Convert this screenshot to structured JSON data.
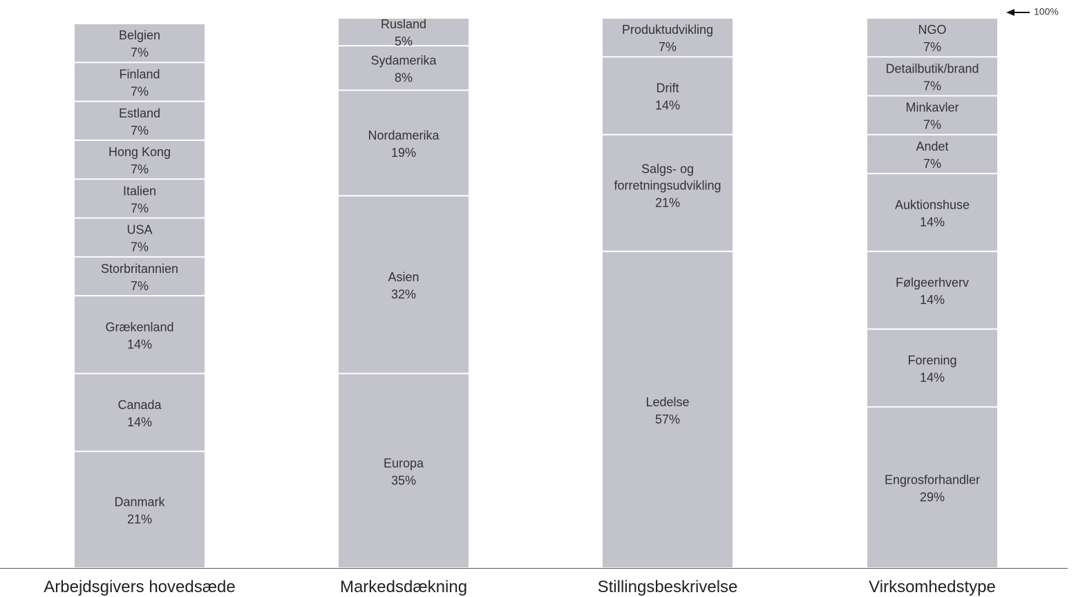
{
  "chart_data": {
    "type": "stacked_columns",
    "ylim": [
      0,
      100
    ],
    "annotation": "100%",
    "color": "#c3c3cb",
    "columns": [
      {
        "name": "Arbejdsgivers hovedsæde",
        "segments": [
          {
            "name": "Danmark",
            "value": 21,
            "value_label": "21%"
          },
          {
            "name": "Canada",
            "value": 14,
            "value_label": "14%"
          },
          {
            "name": "Grækenland",
            "value": 14,
            "value_label": "14%"
          },
          {
            "name": "Storbritannien",
            "value": 7,
            "value_label": "7%"
          },
          {
            "name": "USA",
            "value": 7,
            "value_label": "7%"
          },
          {
            "name": "Italien",
            "value": 7,
            "value_label": "7%"
          },
          {
            "name": "Hong Kong",
            "value": 7,
            "value_label": "7%"
          },
          {
            "name": "Estland",
            "value": 7,
            "value_label": "7%"
          },
          {
            "name": "Finland",
            "value": 7,
            "value_label": "7%"
          },
          {
            "name": "Belgien",
            "value": 7,
            "value_label": "7%"
          }
        ]
      },
      {
        "name": "Markedsdækning",
        "segments": [
          {
            "name": "Europa",
            "value": 35,
            "value_label": "35%"
          },
          {
            "name": "Asien",
            "value": 32,
            "value_label": "32%"
          },
          {
            "name": "Nordamerika",
            "value": 19,
            "value_label": "19%"
          },
          {
            "name": "Sydamerika",
            "value": 8,
            "value_label": "8%"
          },
          {
            "name": "Rusland",
            "value": 5,
            "value_label": "5%"
          }
        ]
      },
      {
        "name": "Stillingsbeskrivelse",
        "segments": [
          {
            "name": "Ledelse",
            "value": 57,
            "value_label": "57%"
          },
          {
            "name": "Salgs- og forretningsudvikling",
            "value": 21,
            "value_label": "21%"
          },
          {
            "name": "Drift",
            "value": 14,
            "value_label": "14%"
          },
          {
            "name": "Produktudvikling",
            "value": 7,
            "value_label": "7%"
          }
        ]
      },
      {
        "name": "Virksomhedstype",
        "segments": [
          {
            "name": "Engrosforhandler",
            "value": 29,
            "value_label": "29%"
          },
          {
            "name": "Forening",
            "value": 14,
            "value_label": "14%"
          },
          {
            "name": "Følgeerhverv",
            "value": 14,
            "value_label": "14%"
          },
          {
            "name": "Auktionshuse",
            "value": 14,
            "value_label": "14%"
          },
          {
            "name": "Andet",
            "value": 7,
            "value_label": "7%"
          },
          {
            "name": "Minkavler",
            "value": 7,
            "value_label": "7%"
          },
          {
            "name": "Detailbutik/brand",
            "value": 7,
            "value_label": "7%"
          },
          {
            "name": "NGO",
            "value": 7,
            "value_label": "7%"
          }
        ]
      }
    ]
  }
}
